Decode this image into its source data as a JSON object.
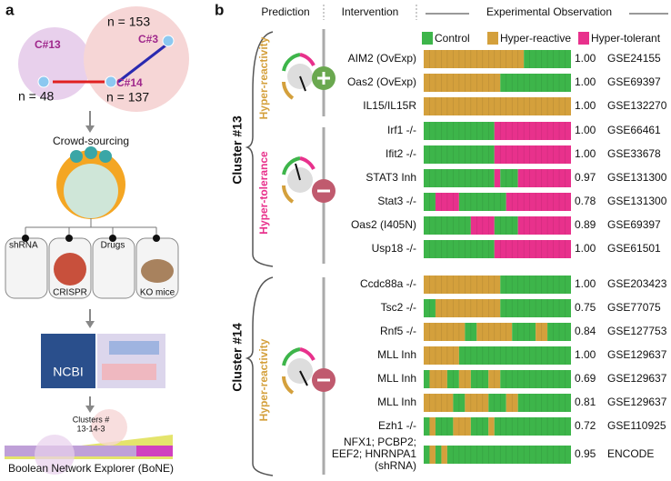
{
  "panel_a": {
    "letter": "a",
    "clusters": [
      {
        "name": "C#13",
        "n": "n = 48"
      },
      {
        "name": "C#3",
        "n": "n = 153"
      },
      {
        "name": "C#14",
        "n": "n = 137"
      }
    ],
    "crowd": "Crowd-sourcing",
    "methods": [
      "shRNA",
      "CRISPR",
      "Drugs",
      "KO mice"
    ],
    "database": "NCBI",
    "bone_clusters": [
      "Clusters #",
      "13-14-3"
    ],
    "bone": "Boolean Network Explorer (BoNE)"
  },
  "panel_b": {
    "letter": "b",
    "headers": [
      "Prediction",
      "Intervention",
      "Experimental Observation"
    ],
    "legend": [
      {
        "label": "Control",
        "color": "#3db54a"
      },
      {
        "label": "Hyper-reactive",
        "color": "#d4a03c"
      },
      {
        "label": "Hyper-tolerant",
        "color": "#e8318c"
      }
    ],
    "groups": [
      {
        "cluster": "Cluster #13",
        "predictions": [
          {
            "label": "Hyper-reactivity",
            "color": "#d4a03c"
          },
          {
            "label": "Hyper-tolerance",
            "color": "#e8318c"
          }
        ]
      },
      {
        "cluster": "Cluster #14",
        "predictions": [
          {
            "label": "Hyper-reactivity",
            "color": "#d4a03c"
          }
        ]
      }
    ],
    "rows": [
      {
        "label": "AIM2 (OvExp)",
        "score": "1.00",
        "dataset": "GSE24155",
        "segments": [
          [
            "#d4a03c",
            17
          ],
          [
            "#3db54a",
            8
          ]
        ]
      },
      {
        "label": "Oas2 (OvExp)",
        "score": "1.00",
        "dataset": "GSE69397",
        "segments": [
          [
            "#d4a03c",
            13
          ],
          [
            "#3db54a",
            12
          ]
        ]
      },
      {
        "label": "IL15/IL15R",
        "score": "1.00",
        "dataset": "GSE132270",
        "segments": [
          [
            "#d4a03c",
            25
          ]
        ]
      },
      {
        "label": "Irf1 -/-",
        "score": "1.00",
        "dataset": "GSE66461",
        "segments": [
          [
            "#3db54a",
            12
          ],
          [
            "#e8318c",
            13
          ]
        ]
      },
      {
        "label": "Ifit2 -/-",
        "score": "1.00",
        "dataset": "GSE33678",
        "segments": [
          [
            "#3db54a",
            12
          ],
          [
            "#e8318c",
            13
          ]
        ]
      },
      {
        "label": "STAT3 Inh",
        "score": "0.97",
        "dataset": "GSE131300",
        "segments": [
          [
            "#3db54a",
            12
          ],
          [
            "#e8318c",
            1
          ],
          [
            "#3db54a",
            3
          ],
          [
            "#e8318c",
            9
          ]
        ]
      },
      {
        "label": "Stat3 -/-",
        "score": "0.78",
        "dataset": "GSE131300",
        "segments": [
          [
            "#3db54a",
            2
          ],
          [
            "#e8318c",
            4
          ],
          [
            "#3db54a",
            8
          ],
          [
            "#e8318c",
            11
          ]
        ]
      },
      {
        "label": "Oas2 (I405N)",
        "score": "0.89",
        "dataset": "GSE69397",
        "segments": [
          [
            "#3db54a",
            8
          ],
          [
            "#e8318c",
            4
          ],
          [
            "#3db54a",
            4
          ],
          [
            "#e8318c",
            9
          ]
        ]
      },
      {
        "label": "Usp18 -/-",
        "score": "1.00",
        "dataset": "GSE61501",
        "segments": [
          [
            "#3db54a",
            12
          ],
          [
            "#e8318c",
            13
          ]
        ]
      },
      {
        "label": "Ccdc88a -/-",
        "score": "1.00",
        "dataset": "GSE203423",
        "segments": [
          [
            "#d4a03c",
            13
          ],
          [
            "#3db54a",
            12
          ]
        ]
      },
      {
        "label": "Tsc2 -/-",
        "score": "0.75",
        "dataset": "GSE77075",
        "segments": [
          [
            "#3db54a",
            2
          ],
          [
            "#d4a03c",
            11
          ],
          [
            "#3db54a",
            12
          ]
        ]
      },
      {
        "label": "Rnf5 -/-",
        "score": "0.84",
        "dataset": "GSE127753",
        "segments": [
          [
            "#d4a03c",
            7
          ],
          [
            "#3db54a",
            2
          ],
          [
            "#d4a03c",
            6
          ],
          [
            "#3db54a",
            4
          ],
          [
            "#d4a03c",
            2
          ],
          [
            "#3db54a",
            4
          ]
        ]
      },
      {
        "label": "MLL Inh",
        "score": "1.00",
        "dataset": "GSE129637",
        "segments": [
          [
            "#d4a03c",
            6
          ],
          [
            "#3db54a",
            19
          ]
        ]
      },
      {
        "label": "MLL Inh",
        "score": "0.69",
        "dataset": "GSE129637",
        "segments": [
          [
            "#3db54a",
            1
          ],
          [
            "#d4a03c",
            3
          ],
          [
            "#3db54a",
            2
          ],
          [
            "#d4a03c",
            2
          ],
          [
            "#3db54a",
            3
          ],
          [
            "#d4a03c",
            2
          ],
          [
            "#3db54a",
            12
          ]
        ]
      },
      {
        "label": "MLL Inh",
        "score": "0.81",
        "dataset": "GSE129637",
        "segments": [
          [
            "#d4a03c",
            5
          ],
          [
            "#3db54a",
            2
          ],
          [
            "#d4a03c",
            4
          ],
          [
            "#3db54a",
            3
          ],
          [
            "#d4a03c",
            2
          ],
          [
            "#3db54a",
            9
          ]
        ]
      },
      {
        "label": "Ezh1 -/-",
        "score": "0.72",
        "dataset": "GSE110925",
        "segments": [
          [
            "#3db54a",
            1
          ],
          [
            "#d4a03c",
            1
          ],
          [
            "#3db54a",
            3
          ],
          [
            "#d4a03c",
            3
          ],
          [
            "#3db54a",
            3
          ],
          [
            "#d4a03c",
            1
          ],
          [
            "#3db54a",
            13
          ]
        ]
      },
      {
        "label": "NFX1; PCBP2; EEF2; HNRNPA1 (shRNA)",
        "score": "0.95",
        "dataset": "ENCODE",
        "segments": [
          [
            "#3db54a",
            1
          ],
          [
            "#d4a03c",
            1
          ],
          [
            "#3db54a",
            1
          ],
          [
            "#d4a03c",
            1
          ],
          [
            "#3db54a",
            21
          ]
        ]
      }
    ]
  }
}
